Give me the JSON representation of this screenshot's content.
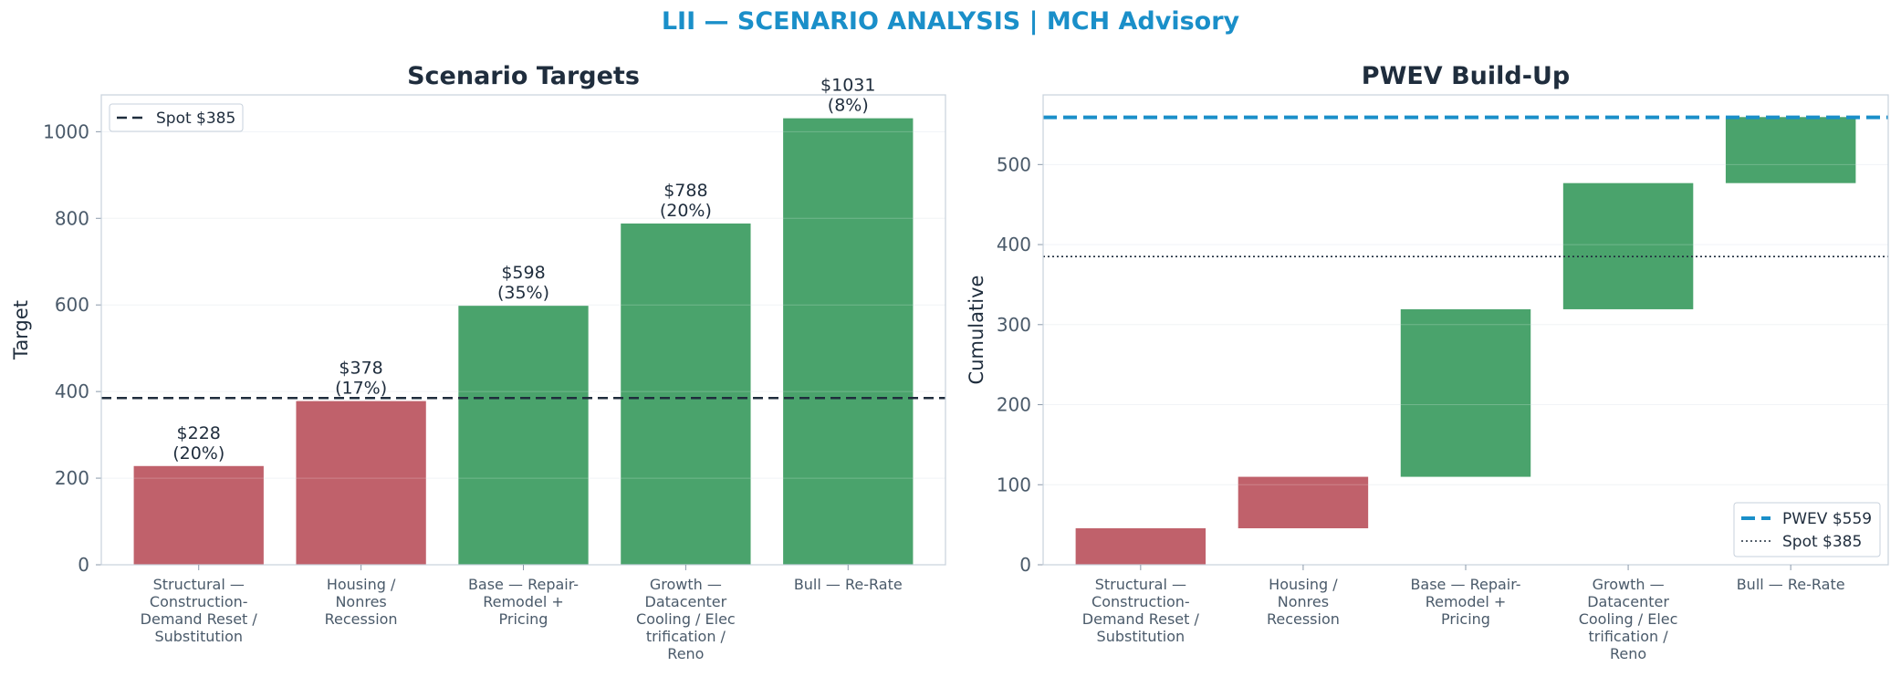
{
  "figure_title": "LII — SCENARIO ANALYSIS | MCH Advisory",
  "colors": {
    "down": "#c0616b",
    "up": "#4aa36c",
    "pwev": "#1a8fc9",
    "spot": "#1f2d3d"
  },
  "chart_data": [
    {
      "type": "bar",
      "title": "Scenario Targets",
      "xlabel": "",
      "ylabel": "Target",
      "categories": [
        "Structural — Construction-Demand Reset / Substitution",
        "Housing / Nonres Recession",
        "Base — Repair-Remodel + Pricing",
        "Growth — Datacenter Cooling / Electrification / Reno",
        "Bull — Re-Rate"
      ],
      "category_lines": [
        [
          "Structural —",
          "Construction-",
          "Demand Reset /",
          "Substitution"
        ],
        [
          "Housing /",
          "Nonres",
          "Recession"
        ],
        [
          "Base — Repair-",
          "Remodel +",
          "Pricing"
        ],
        [
          "Growth —",
          "Datacenter",
          "Cooling / Elec",
          "trification /",
          "Reno"
        ],
        [
          "Bull — Re-Rate"
        ]
      ],
      "values": [
        228,
        378,
        598,
        788,
        1031
      ],
      "probabilities": [
        "20%",
        "17%",
        "35%",
        "20%",
        "8%"
      ],
      "bar_labels": [
        [
          "$228",
          "(20%)"
        ],
        [
          "$378",
          "(17%)"
        ],
        [
          "$598",
          "(35%)"
        ],
        [
          "$788",
          "(20%)"
        ],
        [
          "$1031",
          "(8%)"
        ]
      ],
      "bar_colors": [
        "down",
        "down",
        "up",
        "up",
        "up"
      ],
      "reference_line": {
        "label": "Spot $385",
        "value": 385
      },
      "ylim": [
        0,
        1085
      ],
      "yticks": [
        0,
        200,
        400,
        600,
        800,
        1000
      ],
      "legend": {
        "placement": "top-left",
        "entries": [
          "Spot $385"
        ]
      },
      "grid": true
    },
    {
      "type": "bar",
      "subtype": "waterfall",
      "title": "PWEV Build-Up",
      "xlabel": "",
      "ylabel": "Cumulative",
      "categories": [
        "Structural — Construction-Demand Reset / Substitution",
        "Housing / Nonres Recession",
        "Base — Repair-Remodel + Pricing",
        "Growth — Datacenter Cooling / Electrification / Reno",
        "Bull — Re-Rate"
      ],
      "category_lines": [
        [
          "Structural —",
          "Construction-",
          "Demand Reset /",
          "Substitution"
        ],
        [
          "Housing /",
          "Nonres",
          "Recession"
        ],
        [
          "Base — Repair-",
          "Remodel +",
          "Pricing"
        ],
        [
          "Growth —",
          "Datacenter",
          "Cooling / Elec",
          "trification /",
          "Reno"
        ],
        [
          "Bull — Re-Rate"
        ]
      ],
      "contributions": [
        45.6,
        64.3,
        209.3,
        157.6,
        82.5
      ],
      "starts": [
        0,
        45.6,
        109.9,
        319.2,
        476.8
      ],
      "ends": [
        45.6,
        109.9,
        319.2,
        476.8,
        559.3
      ],
      "bar_colors": [
        "down",
        "down",
        "up",
        "up",
        "up"
      ],
      "reference_lines": [
        {
          "label": "PWEV $559",
          "value": 559,
          "style": "dashed"
        },
        {
          "label": "Spot $385",
          "value": 385,
          "style": "dotted"
        }
      ],
      "ylim": [
        0,
        587
      ],
      "yticks": [
        0,
        100,
        200,
        300,
        400,
        500
      ],
      "legend": {
        "placement": "bottom-right",
        "entries": [
          "PWEV $559",
          "Spot $385"
        ]
      },
      "grid": true
    }
  ]
}
